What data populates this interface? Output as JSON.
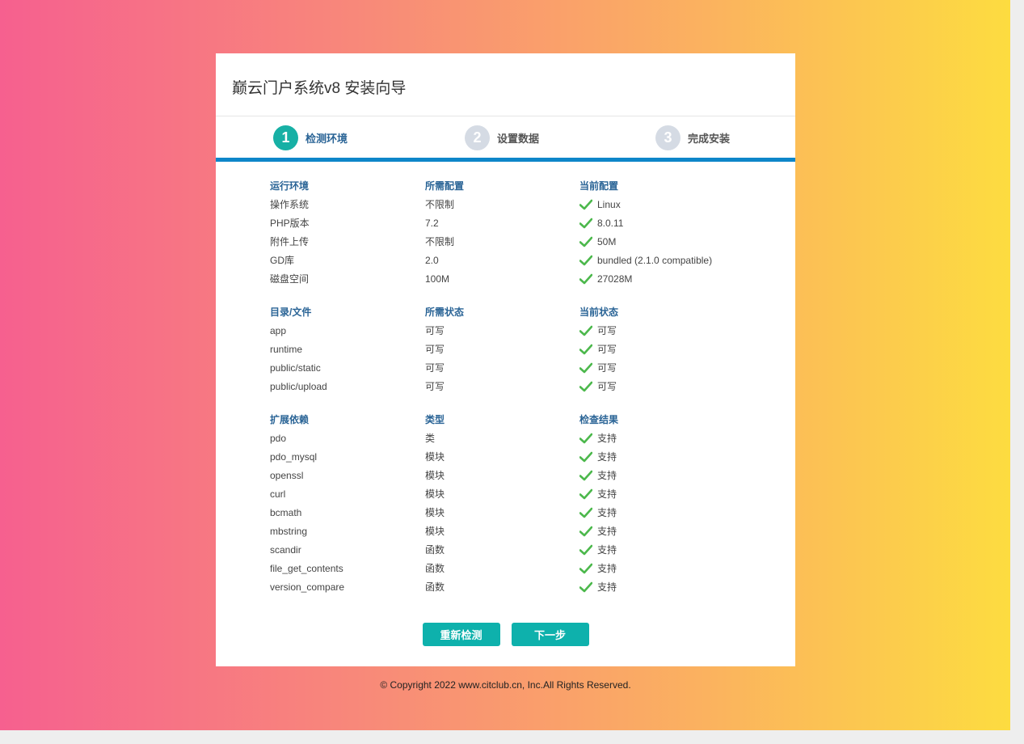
{
  "title": "巅云门户系统v8 安装向导",
  "steps": [
    {
      "num": "1",
      "label": "检测环境",
      "active": true
    },
    {
      "num": "2",
      "label": "设置数据",
      "active": false
    },
    {
      "num": "3",
      "label": "完成安装",
      "active": false
    }
  ],
  "sections": [
    {
      "headers": [
        "运行环境",
        "所需配置",
        "当前配置"
      ],
      "rows": [
        [
          "操作系统",
          "不限制",
          "Linux"
        ],
        [
          "PHP版本",
          "7.2",
          "8.0.11"
        ],
        [
          "附件上传",
          "不限制",
          "50M"
        ],
        [
          "GD库",
          "2.0",
          "bundled (2.1.0 compatible)"
        ],
        [
          "磁盘空间",
          "100M",
          "27028M"
        ]
      ]
    },
    {
      "headers": [
        "目录/文件",
        "所需状态",
        "当前状态"
      ],
      "rows": [
        [
          "app",
          "可写",
          "可写"
        ],
        [
          "runtime",
          "可写",
          "可写"
        ],
        [
          "public/static",
          "可写",
          "可写"
        ],
        [
          "public/upload",
          "可写",
          "可写"
        ]
      ]
    },
    {
      "headers": [
        "扩展依赖",
        "类型",
        "检查结果"
      ],
      "rows": [
        [
          "pdo",
          "类",
          "支持"
        ],
        [
          "pdo_mysql",
          "模块",
          "支持"
        ],
        [
          "openssl",
          "模块",
          "支持"
        ],
        [
          "curl",
          "模块",
          "支持"
        ],
        [
          "bcmath",
          "模块",
          "支持"
        ],
        [
          "mbstring",
          "模块",
          "支持"
        ],
        [
          "scandir",
          "函数",
          "支持"
        ],
        [
          "file_get_contents",
          "函数",
          "支持"
        ],
        [
          "version_compare",
          "函数",
          "支持"
        ]
      ]
    }
  ],
  "buttons": {
    "recheck": "重新检测",
    "next": "下一步"
  },
  "footer": "© Copyright 2022 www.citclub.cn, Inc.All Rights Reserved.",
  "colors": {
    "accent": "#0eb1ac",
    "check": "#4cb84c",
    "header_text": "#2a6496"
  }
}
